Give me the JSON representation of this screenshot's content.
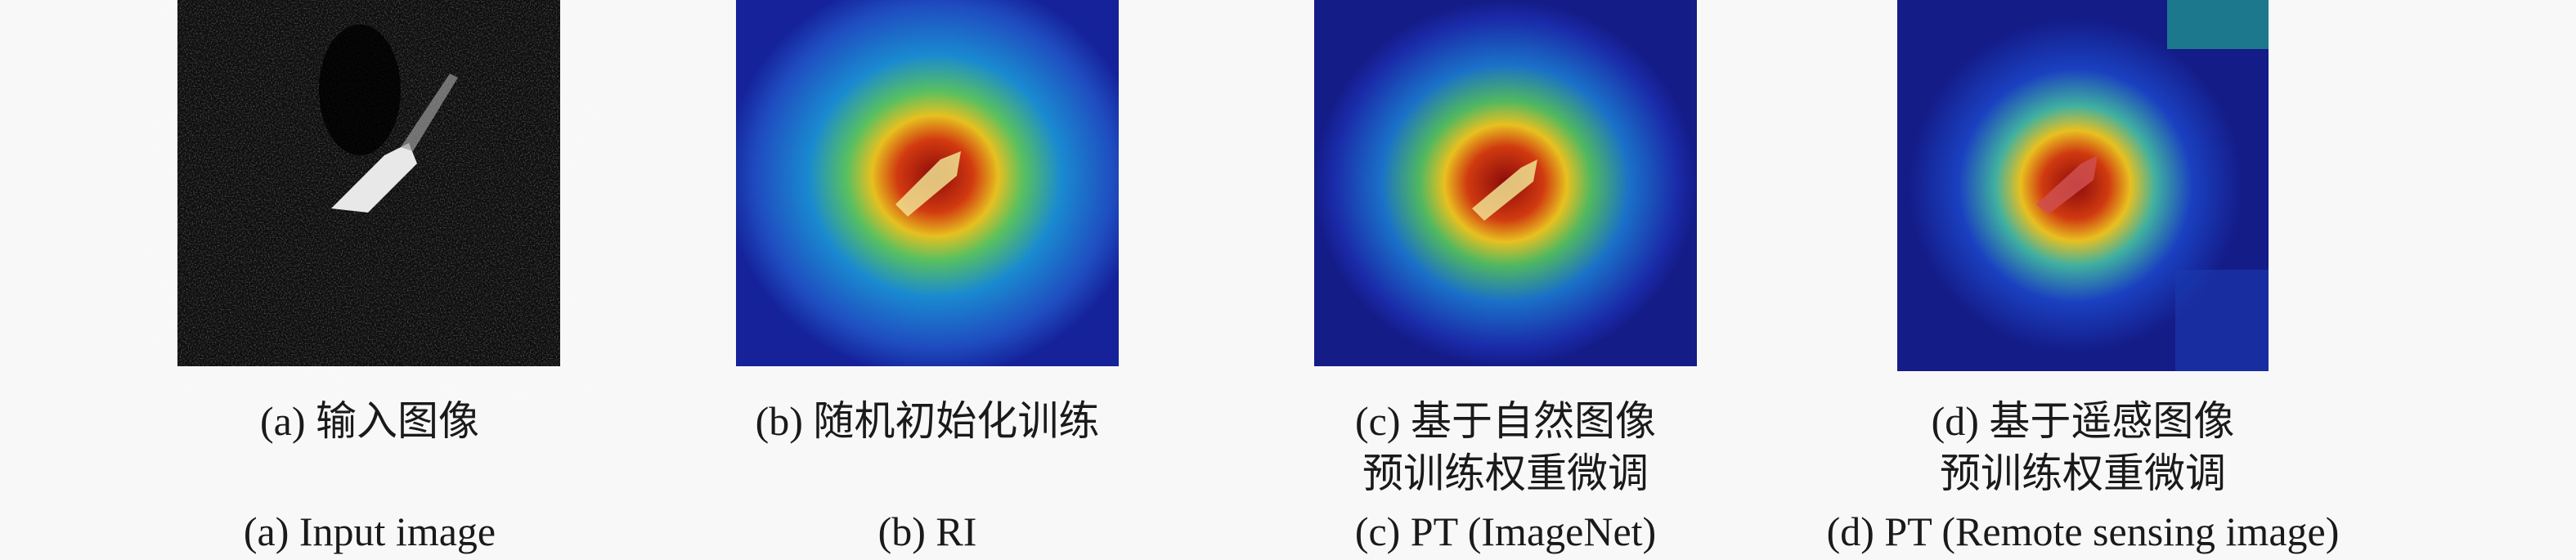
{
  "panels": [
    {
      "caption_cn": [
        "(a) 输入图像"
      ],
      "caption_en": "(a) Input image"
    },
    {
      "caption_cn": [
        "(b) 随机初始化训练"
      ],
      "caption_en": "(b) RI"
    },
    {
      "caption_cn": [
        "(c) 基于自然图像",
        "预训练权重微调"
      ],
      "caption_en": "(c) PT (ImageNet)"
    },
    {
      "caption_cn": [
        "(d) 基于遥感图像",
        "预训练权重微调"
      ],
      "caption_en": "(d) PT (Remote sensing image)"
    }
  ]
}
